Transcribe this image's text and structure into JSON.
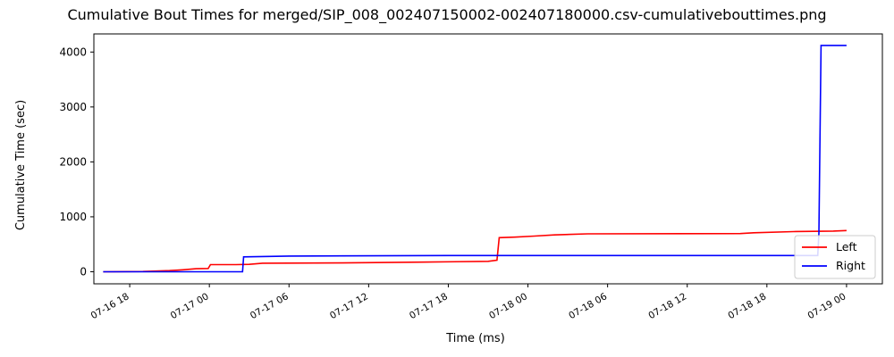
{
  "chart_data": {
    "type": "line",
    "title": "Cumulative Bout Times for merged/SIP_008_002407150002-002407180000.csv-cumulativebouttimes.png",
    "xlabel": "Time (ms)",
    "ylabel": "Cumulative Time (sec)",
    "xlim": [
      "2024-07-16 15:18",
      "2024-07-19 02:42"
    ],
    "ylim": [
      -220,
      4330
    ],
    "xticks": [
      {
        "t": "2024-07-16 18:00",
        "label": "07-16 18"
      },
      {
        "t": "2024-07-17 00:00",
        "label": "07-17 00"
      },
      {
        "t": "2024-07-17 06:00",
        "label": "07-17 06"
      },
      {
        "t": "2024-07-17 12:00",
        "label": "07-17 12"
      },
      {
        "t": "2024-07-17 18:00",
        "label": "07-17 18"
      },
      {
        "t": "2024-07-18 00:00",
        "label": "07-18 00"
      },
      {
        "t": "2024-07-18 06:00",
        "label": "07-18 06"
      },
      {
        "t": "2024-07-18 12:00",
        "label": "07-18 12"
      },
      {
        "t": "2024-07-18 18:00",
        "label": "07-18 18"
      },
      {
        "t": "2024-07-19 00:00",
        "label": "07-19 00"
      }
    ],
    "yticks": [
      0,
      1000,
      2000,
      3000,
      4000
    ],
    "grid": false,
    "legend_position": "bottom-right",
    "series": [
      {
        "name": "Left",
        "color": "#ff0000",
        "points": [
          [
            "2024-07-16 16:00",
            0
          ],
          [
            "2024-07-16 19:00",
            5
          ],
          [
            "2024-07-16 21:00",
            20
          ],
          [
            "2024-07-16 22:00",
            35
          ],
          [
            "2024-07-16 23:00",
            55
          ],
          [
            "2024-07-16 23:55",
            60
          ],
          [
            "2024-07-17 00:05",
            130
          ],
          [
            "2024-07-17 02:00",
            130
          ],
          [
            "2024-07-17 03:00",
            135
          ],
          [
            "2024-07-17 04:00",
            155
          ],
          [
            "2024-07-17 10:00",
            160
          ],
          [
            "2024-07-17 16:00",
            175
          ],
          [
            "2024-07-17 21:00",
            190
          ],
          [
            "2024-07-17 21:40",
            210
          ],
          [
            "2024-07-17 21:50",
            620
          ],
          [
            "2024-07-17 23:00",
            630
          ],
          [
            "2024-07-18 00:30",
            650
          ],
          [
            "2024-07-18 02:00",
            670
          ],
          [
            "2024-07-18 04:30",
            690
          ],
          [
            "2024-07-18 16:00",
            695
          ],
          [
            "2024-07-18 17:00",
            710
          ],
          [
            "2024-07-18 20:00",
            730
          ],
          [
            "2024-07-18 23:00",
            740
          ],
          [
            "2024-07-19 00:00",
            750
          ]
        ]
      },
      {
        "name": "Right",
        "color": "#0000ff",
        "points": [
          [
            "2024-07-16 16:00",
            0
          ],
          [
            "2024-07-17 02:30",
            0
          ],
          [
            "2024-07-17 02:35",
            270
          ],
          [
            "2024-07-17 06:00",
            285
          ],
          [
            "2024-07-17 18:00",
            295
          ],
          [
            "2024-07-18 12:00",
            295
          ],
          [
            "2024-07-18 21:50",
            295
          ],
          [
            "2024-07-18 21:55",
            700
          ],
          [
            "2024-07-18 22:05",
            4120
          ],
          [
            "2024-07-19 00:00",
            4120
          ]
        ]
      }
    ]
  }
}
